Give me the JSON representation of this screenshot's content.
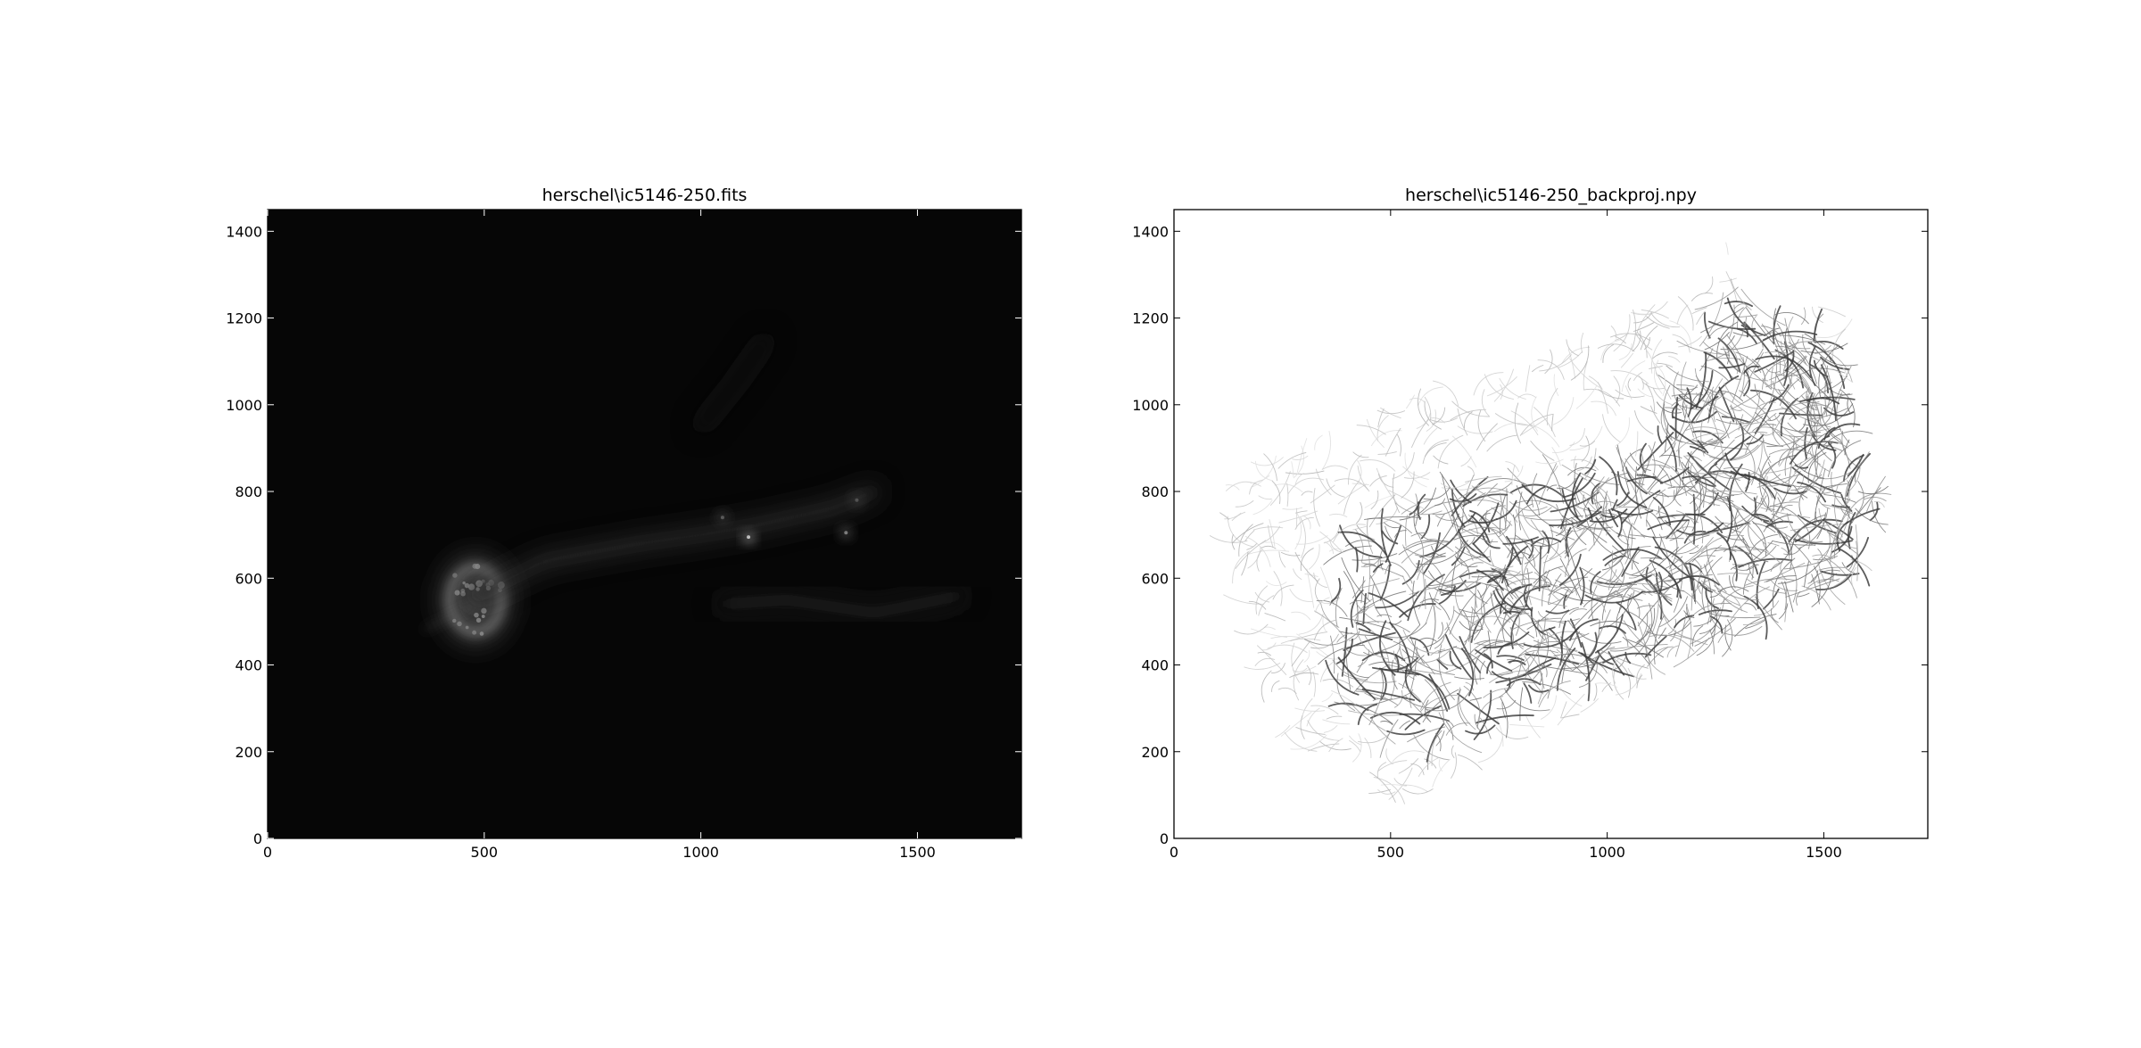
{
  "figure": {
    "background": "#ffffff"
  },
  "chart_data": [
    {
      "type": "heatmap",
      "title": "herschel\\ic5146-250.fits",
      "xlabel": "",
      "ylabel": "",
      "xlim": [
        0,
        1740
      ],
      "ylim": [
        0,
        1450
      ],
      "xticks": [
        0,
        500,
        1000,
        1500
      ],
      "yticks": [
        0,
        200,
        400,
        600,
        800,
        1000,
        1200,
        1400
      ],
      "colormap": "gray",
      "background": "#060606",
      "grid": false,
      "features": [
        {
          "kind": "bright_ring",
          "x": 480,
          "y": 550,
          "rx": 60,
          "ry": 75,
          "intensity": 0.55
        },
        {
          "kind": "point_source",
          "x": 1110,
          "y": 695,
          "intensity": 1.0
        },
        {
          "kind": "point_source",
          "x": 1335,
          "y": 705,
          "intensity": 0.5
        },
        {
          "kind": "point_source",
          "x": 1360,
          "y": 780,
          "intensity": 0.45
        },
        {
          "kind": "point_source",
          "x": 1050,
          "y": 740,
          "intensity": 0.4
        },
        {
          "kind": "filament",
          "points": [
            [
              480,
              560
            ],
            [
              640,
              640
            ],
            [
              860,
              680
            ],
            [
              1000,
              700
            ],
            [
              1120,
              720
            ],
            [
              1300,
              760
            ],
            [
              1400,
              800
            ]
          ],
          "intensity": 0.2
        },
        {
          "kind": "filament",
          "points": [
            [
              1050,
              540
            ],
            [
              1200,
              550
            ],
            [
              1400,
              520
            ],
            [
              1600,
              560
            ]
          ],
          "intensity": 0.13
        },
        {
          "kind": "filament",
          "points": [
            [
              1000,
              950
            ],
            [
              1080,
              1050
            ],
            [
              1150,
              1150
            ]
          ],
          "intensity": 0.08
        }
      ]
    },
    {
      "type": "heatmap",
      "title": "herschel\\ic5146-250_backproj.npy",
      "xlabel": "",
      "ylabel": "",
      "xlim": [
        0,
        1740
      ],
      "ylim": [
        0,
        1450
      ],
      "xticks": [
        0,
        500,
        1000,
        1500
      ],
      "yticks": [
        0,
        200,
        400,
        600,
        800,
        1000,
        1200,
        1400
      ],
      "colormap": "gray_r",
      "background": "#ffffff",
      "grid": false,
      "coverage_polygon": [
        [
          230,
          250
        ],
        [
          100,
          800
        ],
        [
          250,
          900
        ],
        [
          520,
          1010
        ],
        [
          740,
          1060
        ],
        [
          1000,
          1180
        ],
        [
          1190,
          1270
        ],
        [
          1280,
          1380
        ],
        [
          1340,
          1260
        ],
        [
          1520,
          1220
        ],
        [
          1570,
          1000
        ],
        [
          1640,
          730
        ],
        [
          1560,
          580
        ],
        [
          1400,
          520
        ],
        [
          1200,
          420
        ],
        [
          850,
          250
        ],
        [
          560,
          100
        ],
        [
          490,
          80
        ],
        [
          420,
          160
        ]
      ],
      "dense_region": [
        [
          350,
          450
        ],
        [
          380,
          680
        ],
        [
          600,
          800
        ],
        [
          900,
          840
        ],
        [
          1100,
          900
        ],
        [
          1250,
          1250
        ],
        [
          1500,
          1200
        ],
        [
          1640,
          730
        ],
        [
          1500,
          520
        ],
        [
          1250,
          420
        ],
        [
          1000,
          400
        ],
        [
          800,
          280
        ],
        [
          600,
          200
        ],
        [
          420,
          250
        ]
      ]
    }
  ]
}
